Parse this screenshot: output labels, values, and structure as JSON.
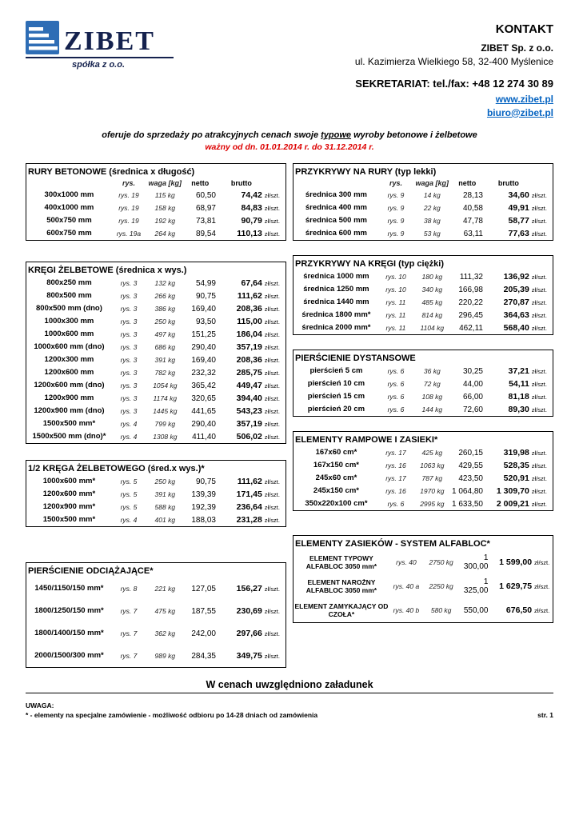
{
  "colors": {
    "link_blue": "#0563c1",
    "validity_red": "#dd0000",
    "logo_blue": "#2e6db5",
    "logo_navy": "#15224e"
  },
  "header": {
    "logo_text": "ZIBET",
    "logo_sub": "spółka z o.o.",
    "kontakt_title": "KONTAKT",
    "company": "ZIBET Sp. z o.o.",
    "address": "ul. Kazimierza Wielkiego 58, 32-400 Myślenice",
    "secretariat": "SEKRETARIAT: tel./fax: +48 12 274 30 89",
    "website": "www.zibet.pl",
    "email": "biuro@zibet.pl"
  },
  "intro": {
    "offer_pre": "oferuje do sprzedaży po atrakcyjnych cenach swoje ",
    "offer_em": "typowe",
    "offer_post": " wyroby betonowe i żelbetowe",
    "validity": "ważny od dn. 01.01.2014 r. do 31.12.2014 r."
  },
  "columns_header": [
    "rys.",
    "waga [kg]",
    "netto",
    "brutto"
  ],
  "unit": "zł/szt.",
  "tables": {
    "left": [
      {
        "title": "RURY BETONOWE (średnica x długość)",
        "show_columns": true,
        "rows": [
          {
            "name": "300x1000 mm",
            "rys": "rys. 19",
            "waga": "115 kg",
            "netto": "60,50",
            "brutto": "74,42"
          },
          {
            "name": "400x1000 mm",
            "rys": "rys. 19",
            "waga": "158 kg",
            "netto": "68,97",
            "brutto": "84,83"
          },
          {
            "name": "500x750 mm",
            "rys": "rys. 19",
            "waga": "192 kg",
            "netto": "73,81",
            "brutto": "90,79"
          },
          {
            "name": "600x750 mm",
            "rys": "rys. 19a",
            "waga": "264 kg",
            "netto": "89,54",
            "brutto": "110,13"
          }
        ]
      },
      {
        "title": "KRĘGI ŻELBETOWE (średnica x wys.)",
        "show_columns": false,
        "rows": [
          {
            "name": "800x250 mm",
            "rys": "rys. 3",
            "waga": "132 kg",
            "netto": "54,99",
            "brutto": "67,64"
          },
          {
            "name": "800x500 mm",
            "rys": "rys. 3",
            "waga": "266 kg",
            "netto": "90,75",
            "brutto": "111,62"
          },
          {
            "name": "800x500 mm (dno)",
            "rys": "rys. 3",
            "waga": "386 kg",
            "netto": "169,40",
            "brutto": "208,36"
          },
          {
            "name": "1000x300 mm",
            "rys": "rys. 3",
            "waga": "250 kg",
            "netto": "93,50",
            "brutto": "115,00"
          },
          {
            "name": "1000x600 mm",
            "rys": "rys. 3",
            "waga": "497 kg",
            "netto": "151,25",
            "brutto": "186,04"
          },
          {
            "name": "1000x600 mm (dno)",
            "rys": "rys. 3",
            "waga": "686 kg",
            "netto": "290,40",
            "brutto": "357,19"
          },
          {
            "name": "1200x300 mm",
            "rys": "rys. 3",
            "waga": "391 kg",
            "netto": "169,40",
            "brutto": "208,36"
          },
          {
            "name": "1200x600 mm",
            "rys": "rys. 3",
            "waga": "782 kg",
            "netto": "232,32",
            "brutto": "285,75"
          },
          {
            "name": "1200x600 mm (dno)",
            "rys": "rys. 3",
            "waga": "1054 kg",
            "netto": "365,42",
            "brutto": "449,47"
          },
          {
            "name": "1200x900 mm",
            "rys": "rys. 3",
            "waga": "1174 kg",
            "netto": "320,65",
            "brutto": "394,40"
          },
          {
            "name": "1200x900 mm (dno)",
            "rys": "rys. 3",
            "waga": "1445 kg",
            "netto": "441,65",
            "brutto": "543,23"
          },
          {
            "name": "1500x500 mm*",
            "rys": "rys. 4",
            "waga": "799 kg",
            "netto": "290,40",
            "brutto": "357,19"
          },
          {
            "name": "1500x500 mm (dno)*",
            "rys": "rys. 4",
            "waga": "1308 kg",
            "netto": "411,40",
            "brutto": "506,02"
          }
        ]
      },
      {
        "title": "1/2 KRĘGA ŻELBETOWEGO (śred.x wys.)*",
        "show_columns": false,
        "rows": [
          {
            "name": "1000x600 mm*",
            "rys": "rys. 5",
            "waga": "250 kg",
            "netto": "90,75",
            "brutto": "111,62"
          },
          {
            "name": "1200x600 mm*",
            "rys": "rys. 5",
            "waga": "391 kg",
            "netto": "139,39",
            "brutto": "171,45"
          },
          {
            "name": "1200x900 mm*",
            "rys": "rys. 5",
            "waga": "588 kg",
            "netto": "192,39",
            "brutto": "236,64"
          },
          {
            "name": "1500x500 mm*",
            "rys": "rys. 4",
            "waga": "401 kg",
            "netto": "188,03",
            "brutto": "231,28"
          }
        ]
      },
      {
        "title": "PIERŚCIENIE ODCIĄŻAJĄCE*",
        "show_columns": false,
        "rows": [
          {
            "name": "1450/1150/150 mm*",
            "rys": "rys. 8",
            "waga": "221 kg",
            "netto": "127,05",
            "brutto": "156,27"
          },
          {
            "name": "1800/1250/150 mm*",
            "rys": "rys. 7",
            "waga": "475 kg",
            "netto": "187,55",
            "brutto": "230,69"
          },
          {
            "name": "1800/1400/150 mm*",
            "rys": "rys. 7",
            "waga": "362 kg",
            "netto": "242,00",
            "brutto": "297,66"
          },
          {
            "name": "2000/1500/300 mm*",
            "rys": "rys. 7",
            "waga": "989 kg",
            "netto": "284,35",
            "brutto": "349,75"
          }
        ]
      }
    ],
    "right": [
      {
        "title": "PRZYKRYWY NA RURY (typ lekki)",
        "show_columns": true,
        "rows": [
          {
            "name": "średnica 300 mm",
            "rys": "rys. 9",
            "waga": "14 kg",
            "netto": "28,13",
            "brutto": "34,60"
          },
          {
            "name": "średnica 400 mm",
            "rys": "rys. 9",
            "waga": "22 kg",
            "netto": "40,58",
            "brutto": "49,91"
          },
          {
            "name": "średnica 500 mm",
            "rys": "rys. 9",
            "waga": "38 kg",
            "netto": "47,78",
            "brutto": "58,77"
          },
          {
            "name": "średnica 600 mm",
            "rys": "rys. 9",
            "waga": "53 kg",
            "netto": "63,11",
            "brutto": "77,63"
          }
        ]
      },
      {
        "title": "PRZYKRYWY NA KRĘGI (typ ciężki)",
        "show_columns": false,
        "rows": [
          {
            "name": "średnica 1000 mm",
            "rys": "rys. 10",
            "waga": "180 kg",
            "netto": "111,32",
            "brutto": "136,92"
          },
          {
            "name": "średnica 1250 mm",
            "rys": "rys. 10",
            "waga": "340 kg",
            "netto": "166,98",
            "brutto": "205,39"
          },
          {
            "name": "średnica 1440 mm",
            "rys": "rys. 11",
            "waga": "485 kg",
            "netto": "220,22",
            "brutto": "270,87"
          },
          {
            "name": "średnica 1800 mm*",
            "rys": "rys. 11",
            "waga": "814 kg",
            "netto": "296,45",
            "brutto": "364,63"
          },
          {
            "name": "średnica 2000 mm*",
            "rys": "rys. 11",
            "waga": "1104 kg",
            "netto": "462,11",
            "brutto": "568,40"
          }
        ]
      },
      {
        "title": "PIERŚCIENIE DYSTANSOWE",
        "show_columns": false,
        "rows": [
          {
            "name": "pierścień 5 cm",
            "rys": "rys. 6",
            "waga": "36 kg",
            "netto": "30,25",
            "brutto": "37,21"
          },
          {
            "name": "pierścień 10 cm",
            "rys": "rys. 6",
            "waga": "72 kg",
            "netto": "44,00",
            "brutto": "54,11"
          },
          {
            "name": "pierścień 15 cm",
            "rys": "rys. 6",
            "waga": "108 kg",
            "netto": "66,00",
            "brutto": "81,18"
          },
          {
            "name": "pierścień 20 cm",
            "rys": "rys. 6",
            "waga": "144 kg",
            "netto": "72,60",
            "brutto": "89,30"
          }
        ]
      },
      {
        "title": "ELEMENTY RAMPOWE I ZASIEKI*",
        "show_columns": false,
        "rows": [
          {
            "name": "167x60 cm*",
            "rys": "rys. 17",
            "waga": "425 kg",
            "netto": "260,15",
            "brutto": "319,98"
          },
          {
            "name": "167x150 cm*",
            "rys": "rys. 16",
            "waga": "1063 kg",
            "netto": "429,55",
            "brutto": "528,35"
          },
          {
            "name": "245x60 cm*",
            "rys": "rys. 17",
            "waga": "787 kg",
            "netto": "423,50",
            "brutto": "520,91"
          },
          {
            "name": "245x150 cm*",
            "rys": "rys. 16",
            "waga": "1970 kg",
            "netto": "1 064,80",
            "brutto": "1 309,70"
          },
          {
            "name": "350x220x100 cm*",
            "rys": "rys. 6",
            "waga": "2995 kg",
            "netto": "1 633,50",
            "brutto": "2 009,21"
          }
        ]
      },
      {
        "title": "ELEMENTY ZASIEKÓW - SYSTEM ALFABLOC*",
        "show_columns": false,
        "rows": [
          {
            "name": "ELEMENT TYPOWY ALFABLOC 3050 mm*",
            "rys": "rys. 40",
            "waga": "2750 kg",
            "netto": "1 300,00",
            "brutto": "1 599,00"
          },
          {
            "name": "ELEMENT NAROŻNY ALFABLOC 3050 mm*",
            "rys": "rys. 40 a",
            "waga": "2250 kg",
            "netto": "1 325,00",
            "brutto": "1 629,75"
          },
          {
            "name": "ELEMENT ZAMYKAJĄCY OD CZOŁA*",
            "rys": "rys. 40 b",
            "waga": "580 kg",
            "netto": "550,00",
            "brutto": "676,50"
          }
        ]
      }
    ]
  },
  "footer": {
    "loading_note": "W cenach uwzględniono załadunek",
    "uwaga": "UWAGA:",
    "note": "* - elementy na specjalne zamówienie - możliwość odbioru po 14-28 dniach od zamówienia",
    "page": "str. 1"
  }
}
